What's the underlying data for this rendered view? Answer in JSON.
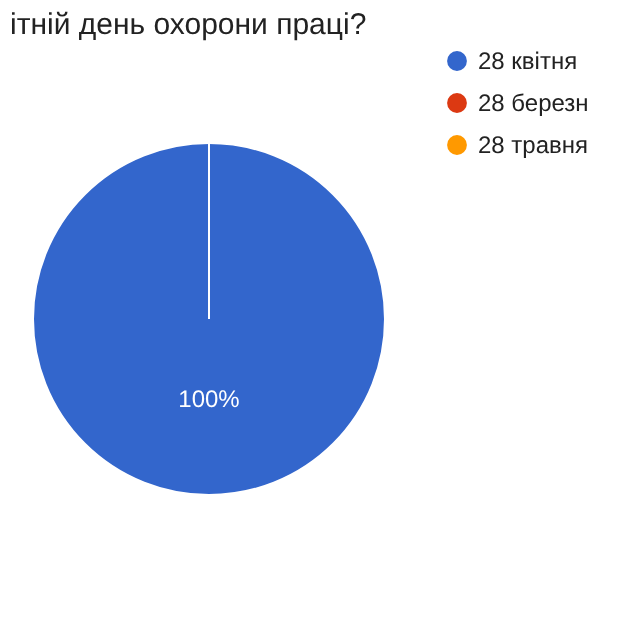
{
  "chart_data": {
    "type": "pie",
    "title": "ітній день охорони праці?",
    "categories": [
      "28 квітня",
      "28 березн",
      "28 травня"
    ],
    "values": [
      100,
      0,
      0
    ],
    "colors": [
      "#3366cc",
      "#dc3912",
      "#ff9900"
    ],
    "value_labels": [
      "100%",
      null,
      null
    ],
    "legend": "right"
  }
}
